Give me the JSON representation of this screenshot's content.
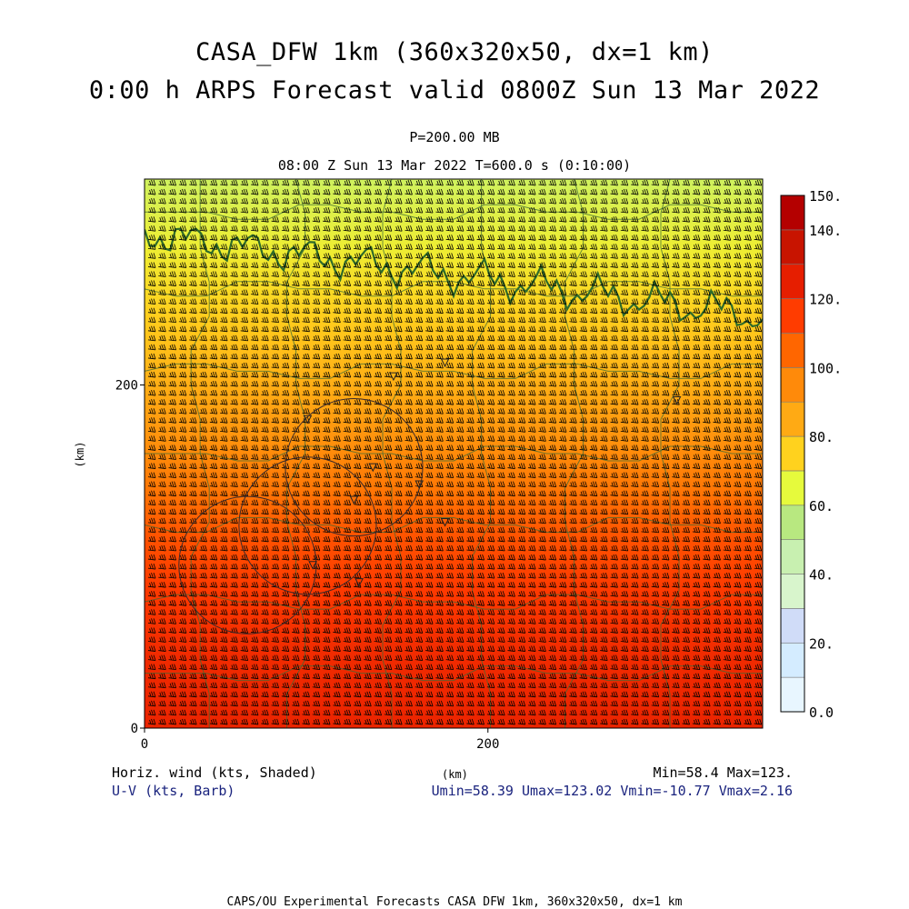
{
  "header": {
    "title_line1": "CASA_DFW 1km (360x320x50, dx=1 km)",
    "title_line2": "0:00 h ARPS Forecast valid 0800Z Sun 13 Mar 2022",
    "pressure_label": "P=200.00 MB",
    "time_label": "08:00 Z Sun 13 Mar 2022    T=600.0 s (0:10:00)"
  },
  "chart_data": {
    "type": "heatmap",
    "field": "Horiz. wind (kts, Shaded)",
    "overlay": "U-V (kts, Barb)",
    "xlabel": "(km)",
    "ylabel": "(km)",
    "x_ticks": [
      0,
      200
    ],
    "y_ticks": [
      0,
      200
    ],
    "xlim": [
      0,
      360
    ],
    "ylim": [
      0,
      320
    ],
    "colorbar": {
      "levels": [
        0,
        10,
        20,
        30,
        40,
        50,
        60,
        70,
        80,
        90,
        100,
        110,
        120,
        130,
        140,
        150
      ],
      "tick_labels": [
        "0.0",
        "20.",
        "40.",
        "60.",
        "80.",
        "100.",
        "120.",
        "140.",
        "150."
      ],
      "tick_values": [
        0,
        20,
        40,
        60,
        80,
        100,
        120,
        140,
        150
      ],
      "colors": [
        "#e8f6ff",
        "#d4ecff",
        "#d0dcf8",
        "#d8f5cc",
        "#c8f0b0",
        "#b8e880",
        "#e6fa3c",
        "#ffd21e",
        "#ffaa14",
        "#ff8a0a",
        "#ff6600",
        "#ff3c00",
        "#e61e00",
        "#c81400",
        "#b40000"
      ]
    },
    "field_profile": {
      "y_km": [
        0,
        40,
        80,
        110,
        140,
        170,
        200,
        240,
        280,
        320
      ],
      "wind_kts": [
        123,
        121,
        116,
        110,
        100,
        92,
        84,
        76,
        68,
        60
      ]
    },
    "stats": {
      "minmax": "Min=58.4 Max=123.",
      "components": "Umin=58.39 Umax=123.02 Vmin=-10.77 Vmax=2.16"
    },
    "radar_sites": [
      {
        "x": 60,
        "y": 95
      },
      {
        "x": 122,
        "y": 152
      },
      {
        "x": 95,
        "y": 118
      }
    ],
    "radar_range_km": 40
  },
  "legend": {
    "left_line1": "Horiz. wind (kts, Shaded)",
    "left_line2": "U-V (kts, Barb)"
  },
  "footer": {
    "credit": "CAPS/OU Experimental Forecasts  CASA DFW 1km, 360x320x50, dx=1 km"
  },
  "colors": {
    "border_line": "#2f6b2a",
    "county_line": "#3d6b35",
    "barb": "#000000"
  }
}
